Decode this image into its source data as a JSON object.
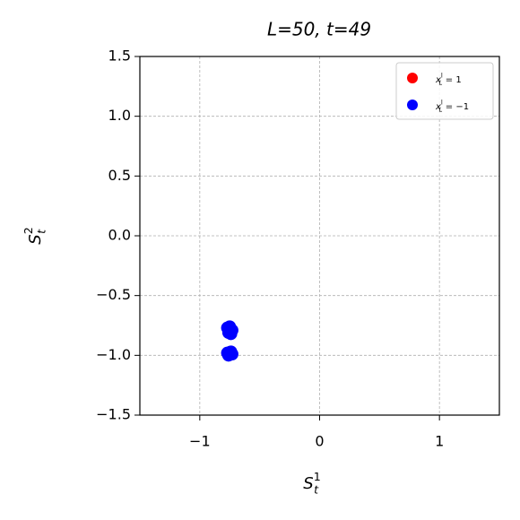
{
  "chart_data": {
    "type": "scatter",
    "title": "L=50, t=49",
    "xlabel": {
      "base": "S",
      "sub": "t",
      "sup": "1"
    },
    "ylabel": {
      "base": "S",
      "sub": "t",
      "sup": "2"
    },
    "xlim": [
      -1.5,
      1.5
    ],
    "xticks": [
      {
        "value": -1,
        "label": "−1"
      },
      0,
      1
    ],
    "ylim": [
      -1.5,
      1.5
    ],
    "yticks": [
      {
        "value": -1.5,
        "label": "−1.5"
      },
      {
        "value": -1.0,
        "label": "−1.0"
      },
      {
        "value": -0.5,
        "label": "−0.5"
      },
      {
        "value": 0,
        "label": "0.0"
      },
      0.5,
      {
        "value": 1.0,
        "label": "1.0"
      },
      1.5
    ],
    "grid": true,
    "legend_position": "upper right",
    "series": [
      {
        "name": {
          "base": "x",
          "sub": "L",
          "sup": "l",
          "rest": " = 1"
        },
        "color": "#ff0000",
        "x": [
          -0.76,
          -0.74,
          -0.76,
          -0.74
        ],
        "y": [
          -0.78,
          -0.8,
          -0.99,
          -0.99
        ]
      },
      {
        "name": {
          "base": "x",
          "sub": "L",
          "sup": "l",
          "rest": " = −1"
        },
        "color": "#0000ff",
        "x": [
          -0.77,
          -0.75,
          -0.73,
          -0.76,
          -0.74,
          -0.77,
          -0.75,
          -0.73,
          -0.76,
          -0.74
        ],
        "y": [
          -0.77,
          -0.76,
          -0.79,
          -0.81,
          -0.82,
          -0.98,
          -0.99,
          -0.99,
          -1.0,
          -0.97
        ]
      }
    ]
  }
}
